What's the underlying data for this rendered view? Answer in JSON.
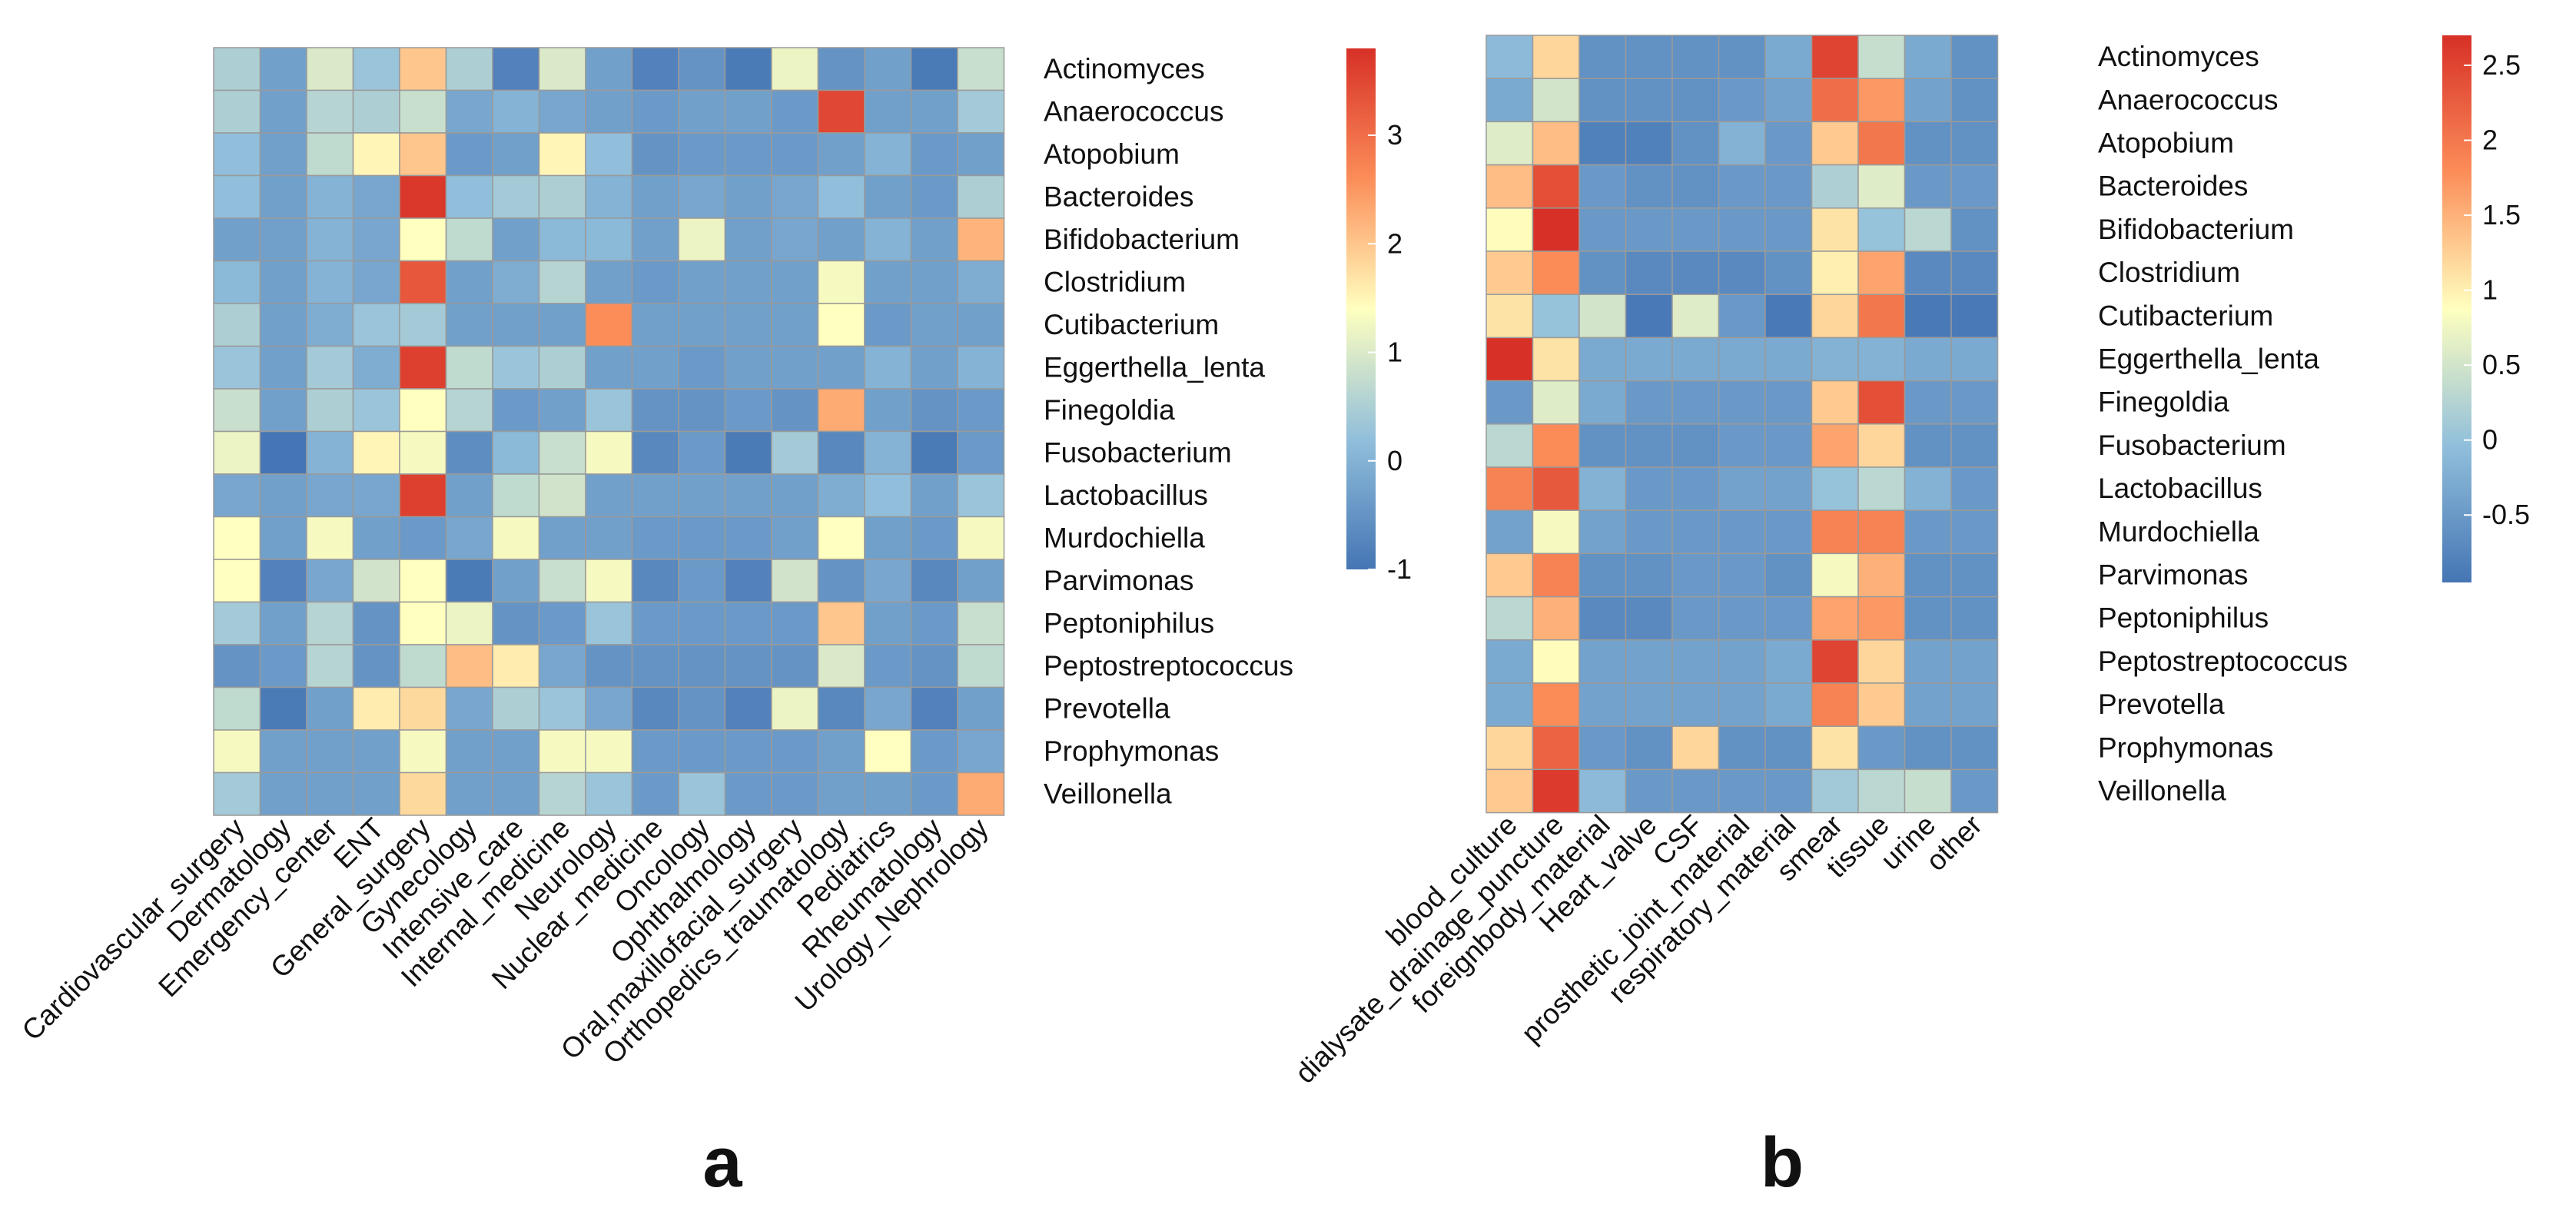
{
  "figure": {
    "description_labels": {
      "a": "a",
      "b": "b"
    }
  },
  "chart_data": [
    {
      "type": "heatmap",
      "panel_label": "a",
      "title": "",
      "rows": [
        "Actinomyces",
        "Anaerococcus",
        "Atopobium",
        "Bacteroides",
        "Bifidobacterium",
        "Clostridium",
        "Cutibacterium",
        "Eggerthella_lenta",
        "Finegoldia",
        "Fusobacterium",
        "Lactobacillus",
        "Murdochiella",
        "Parvimonas",
        "Peptoniphilus",
        "Peptostreptococcus",
        "Prevotella",
        "Prophymonas",
        "Veillonella"
      ],
      "columns": [
        "Cardiovascular_surgery",
        "Dermatology",
        "Emergency_center",
        "ENT",
        "General_surgery",
        "Gynecology",
        "Intensive_care",
        "Internal_medicine",
        "Neurology",
        "Nuclear_medicine",
        "Oncology",
        "Ophthalmology",
        "Oral,maxillofacial_surgery",
        "Orthopedics_traumatology",
        "Pediatrics",
        "Rheumatology",
        "Urology_Nephrology"
      ],
      "values": [
        [
          0.5,
          -0.3,
          1.0,
          0.3,
          2.0,
          0.5,
          -0.8,
          1.0,
          -0.3,
          -0.8,
          -0.5,
          -0.9,
          1.2,
          -0.5,
          -0.3,
          -0.9,
          0.8
        ],
        [
          0.5,
          -0.3,
          0.6,
          0.5,
          0.8,
          -0.2,
          0.0,
          -0.2,
          -0.3,
          -0.4,
          -0.3,
          -0.3,
          -0.4,
          3.5,
          -0.3,
          -0.3,
          0.4
        ],
        [
          0.2,
          -0.3,
          0.7,
          1.5,
          2.0,
          -0.4,
          -0.3,
          1.5,
          0.2,
          -0.5,
          -0.4,
          -0.4,
          -0.4,
          -0.3,
          0.0,
          -0.4,
          -0.3
        ],
        [
          0.2,
          -0.3,
          0.0,
          -0.2,
          3.7,
          0.2,
          0.4,
          0.5,
          0.0,
          -0.3,
          -0.2,
          -0.3,
          -0.2,
          0.2,
          -0.3,
          -0.4,
          0.5
        ],
        [
          -0.3,
          -0.3,
          0.0,
          -0.2,
          1.4,
          0.7,
          -0.3,
          0.1,
          0.1,
          -0.3,
          1.2,
          -0.3,
          -0.2,
          -0.3,
          0.0,
          -0.3,
          2.2
        ],
        [
          0.1,
          -0.3,
          0.0,
          -0.2,
          3.3,
          -0.3,
          -0.1,
          0.6,
          -0.3,
          -0.4,
          -0.3,
          -0.3,
          -0.3,
          1.3,
          -0.3,
          -0.3,
          -0.1
        ],
        [
          0.5,
          -0.3,
          -0.1,
          0.3,
          0.4,
          -0.3,
          -0.3,
          -0.3,
          2.6,
          -0.3,
          -0.3,
          -0.3,
          -0.3,
          1.4,
          -0.4,
          -0.3,
          -0.3
        ],
        [
          0.3,
          -0.3,
          0.4,
          -0.1,
          3.6,
          0.7,
          0.3,
          0.5,
          -0.3,
          -0.3,
          -0.4,
          -0.3,
          -0.3,
          -0.3,
          0.0,
          -0.3,
          0.0
        ],
        [
          0.8,
          -0.3,
          0.5,
          0.3,
          1.4,
          0.6,
          -0.4,
          -0.3,
          0.3,
          -0.5,
          -0.5,
          -0.4,
          -0.5,
          2.3,
          -0.3,
          -0.5,
          -0.4
        ],
        [
          1.2,
          -1.0,
          0.0,
          1.5,
          1.3,
          -0.6,
          0.1,
          0.8,
          1.3,
          -0.7,
          -0.4,
          -0.9,
          0.4,
          -0.7,
          0.0,
          -0.9,
          -0.4
        ],
        [
          -0.2,
          -0.3,
          -0.2,
          -0.2,
          3.6,
          -0.3,
          0.7,
          0.9,
          -0.3,
          -0.3,
          -0.3,
          -0.3,
          -0.3,
          -0.1,
          0.2,
          -0.3,
          0.3
        ],
        [
          1.4,
          -0.3,
          1.3,
          -0.3,
          -0.4,
          -0.2,
          1.3,
          -0.3,
          -0.3,
          -0.4,
          -0.4,
          -0.4,
          -0.3,
          1.4,
          -0.3,
          -0.4,
          1.3
        ],
        [
          1.4,
          -0.8,
          -0.2,
          0.9,
          1.4,
          -0.9,
          -0.3,
          0.8,
          1.3,
          -0.7,
          -0.4,
          -0.8,
          0.9,
          -0.5,
          -0.2,
          -0.7,
          -0.3
        ],
        [
          0.4,
          -0.3,
          0.6,
          -0.5,
          1.4,
          1.2,
          -0.5,
          -0.4,
          0.3,
          -0.4,
          -0.4,
          -0.4,
          -0.4,
          2.0,
          -0.3,
          -0.4,
          0.8
        ],
        [
          -0.5,
          -0.4,
          0.6,
          -0.5,
          0.7,
          2.1,
          1.6,
          -0.2,
          -0.5,
          -0.5,
          -0.5,
          -0.5,
          -0.5,
          1.0,
          -0.4,
          -0.5,
          0.7
        ],
        [
          0.7,
          -0.9,
          -0.3,
          1.6,
          1.8,
          -0.2,
          0.5,
          0.3,
          -0.2,
          -0.7,
          -0.5,
          -0.8,
          1.2,
          -0.7,
          -0.2,
          -0.8,
          -0.3
        ],
        [
          1.3,
          -0.3,
          -0.3,
          -0.3,
          1.3,
          -0.3,
          -0.3,
          1.3,
          1.3,
          -0.4,
          -0.4,
          -0.4,
          -0.4,
          -0.3,
          1.4,
          -0.4,
          -0.2
        ],
        [
          0.4,
          -0.3,
          -0.3,
          -0.3,
          1.8,
          -0.3,
          -0.3,
          0.6,
          0.3,
          -0.4,
          0.3,
          -0.4,
          -0.4,
          -0.3,
          -0.3,
          -0.4,
          2.3
        ]
      ],
      "colorbar": {
        "min": -1,
        "max": 3.8,
        "ticks": [
          3,
          2,
          1,
          0,
          -1
        ],
        "tick_labels": [
          "3",
          "2",
          "1",
          "0",
          "-1"
        ]
      }
    },
    {
      "type": "heatmap",
      "panel_label": "b",
      "title": "",
      "rows": [
        "Actinomyces",
        "Anaerococcus",
        "Atopobium",
        "Bacteroides",
        "Bifidobacterium",
        "Clostridium",
        "Cutibacterium",
        "Eggerthella_lenta",
        "Finegoldia",
        "Fusobacterium",
        "Lactobacillus",
        "Murdochiella",
        "Parvimonas",
        "Peptoniphilus",
        "Peptostreptococcus",
        "Prevotella",
        "Prophymonas",
        "Veillonella"
      ],
      "columns": [
        "blood_culture",
        "dialysate_drainage_puncture",
        "foreignbody_material",
        "Heart_valve",
        "CSF",
        "prosthetic_joint_material",
        "respiratory_material",
        "smear",
        "tissue",
        "urine",
        "other"
      ],
      "values": [
        [
          -0.1,
          1.2,
          -0.6,
          -0.6,
          -0.6,
          -0.6,
          -0.3,
          2.5,
          0.4,
          -0.3,
          -0.6
        ],
        [
          -0.3,
          0.5,
          -0.6,
          -0.6,
          -0.6,
          -0.5,
          -0.4,
          2.1,
          1.7,
          -0.4,
          -0.6
        ],
        [
          0.6,
          1.4,
          -0.8,
          -0.8,
          -0.6,
          -0.2,
          -0.5,
          1.3,
          2.0,
          -0.6,
          -0.6
        ],
        [
          1.4,
          2.4,
          -0.5,
          -0.6,
          -0.6,
          -0.5,
          -0.5,
          0.2,
          0.6,
          -0.5,
          -0.5
        ],
        [
          0.9,
          2.7,
          -0.5,
          -0.5,
          -0.5,
          -0.5,
          -0.5,
          1.1,
          0.0,
          0.3,
          -0.6
        ],
        [
          1.3,
          1.8,
          -0.6,
          -0.7,
          -0.7,
          -0.7,
          -0.6,
          1.0,
          1.6,
          -0.7,
          -0.7
        ],
        [
          1.1,
          0.0,
          0.5,
          -0.9,
          0.6,
          -0.5,
          -0.9,
          1.2,
          2.0,
          -0.9,
          -0.9
        ],
        [
          2.7,
          1.1,
          -0.3,
          -0.3,
          -0.3,
          -0.3,
          -0.3,
          -0.2,
          -0.2,
          -0.3,
          -0.3
        ],
        [
          -0.5,
          0.6,
          -0.3,
          -0.5,
          -0.5,
          -0.5,
          -0.5,
          1.3,
          2.4,
          -0.5,
          -0.5
        ],
        [
          0.3,
          1.8,
          -0.6,
          -0.6,
          -0.6,
          -0.5,
          -0.5,
          1.6,
          1.2,
          -0.6,
          -0.6
        ],
        [
          1.9,
          2.3,
          -0.2,
          -0.5,
          -0.5,
          -0.4,
          -0.4,
          0.0,
          0.3,
          -0.2,
          -0.5
        ],
        [
          -0.4,
          0.8,
          -0.4,
          -0.5,
          -0.5,
          -0.5,
          -0.5,
          1.9,
          1.9,
          -0.5,
          -0.5
        ],
        [
          1.3,
          1.9,
          -0.6,
          -0.6,
          -0.5,
          -0.5,
          -0.6,
          0.8,
          1.5,
          -0.6,
          -0.6
        ],
        [
          0.3,
          1.5,
          -0.7,
          -0.7,
          -0.5,
          -0.5,
          -0.5,
          1.6,
          1.7,
          -0.6,
          -0.6
        ],
        [
          -0.3,
          0.9,
          -0.4,
          -0.4,
          -0.4,
          -0.4,
          -0.3,
          2.5,
          1.2,
          -0.4,
          -0.4
        ],
        [
          -0.3,
          1.8,
          -0.4,
          -0.4,
          -0.4,
          -0.4,
          -0.3,
          1.9,
          1.3,
          -0.4,
          -0.4
        ],
        [
          1.2,
          2.2,
          -0.5,
          -0.6,
          1.2,
          -0.6,
          -0.6,
          1.1,
          -0.5,
          -0.6,
          -0.6
        ],
        [
          1.3,
          2.6,
          -0.1,
          -0.5,
          -0.5,
          -0.5,
          -0.5,
          0.1,
          0.3,
          0.4,
          -0.5
        ]
      ],
      "colorbar": {
        "min": -0.95,
        "max": 2.7,
        "ticks": [
          2.5,
          2,
          1.5,
          1,
          0.5,
          0,
          -0.5
        ],
        "tick_labels": [
          "2.5",
          "2",
          "1.5",
          "1",
          "0.5",
          "0",
          "-0.5"
        ]
      }
    }
  ]
}
